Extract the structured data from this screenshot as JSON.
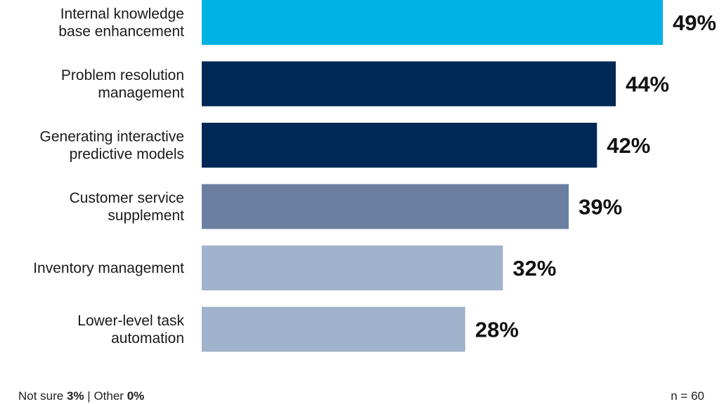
{
  "chart_data": {
    "type": "bar",
    "orientation": "horizontal",
    "categories": [
      [
        "Internal knowledge",
        "base enhancement"
      ],
      [
        "Problem resolution",
        "management"
      ],
      [
        "Generating interactive",
        "predictive models"
      ],
      [
        "Customer service",
        "supplement"
      ],
      [
        "Inventory management"
      ],
      [
        "Lower-level task",
        "automation"
      ]
    ],
    "values": [
      49,
      44,
      42,
      39,
      32,
      28
    ],
    "value_labels": [
      "49%",
      "44%",
      "42%",
      "39%",
      "32%",
      "28%"
    ],
    "bar_colors": [
      "#00b1e5",
      "#002856",
      "#002856",
      "#6b7fa0",
      "#a0b3cc",
      "#a0b3cc"
    ],
    "xlim": [
      0,
      49
    ],
    "grid": false,
    "title": "",
    "xlabel": "",
    "ylabel": ""
  },
  "footer": {
    "not_sure_label": "Not sure",
    "not_sure_value": "3%",
    "separator": "|",
    "other_label": "Other",
    "other_value": "0%",
    "sample_size": "n = 60"
  }
}
